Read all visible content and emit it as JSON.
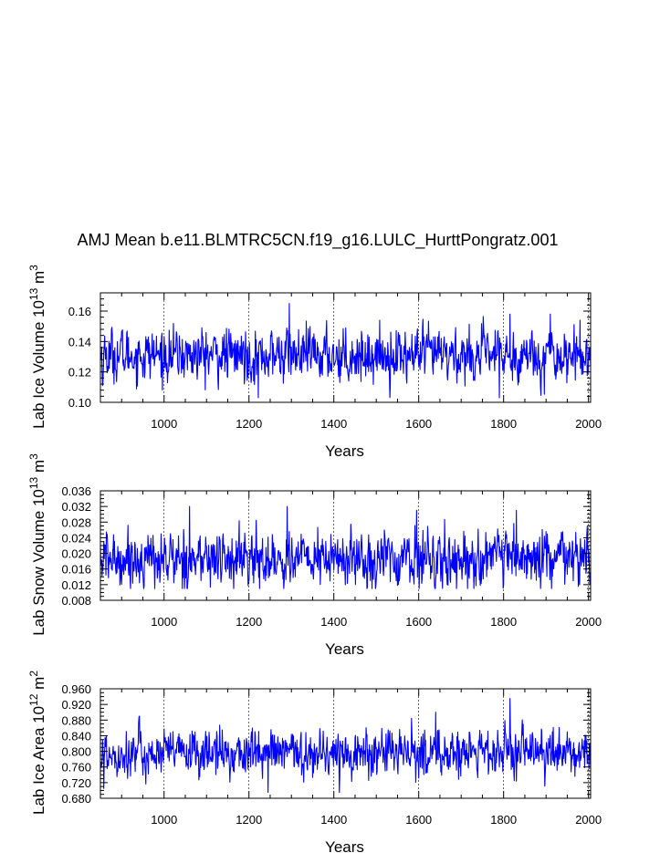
{
  "figure_title": "AMJ Mean b.e11.BLMTRC5CN.f19_g16.LULC_HurttPongratz.001",
  "colors": {
    "series": "#0000ff",
    "axis": "#000000",
    "grid": "#000000",
    "background": "#ffffff"
  },
  "chart_data": [
    {
      "type": "line",
      "title": "AMJ Mean b.e11.BLMTRC5CN.f19_g16.LULC_HurttPongratz.001",
      "ylabel": "Lab Ice Volume 10^13 m^3",
      "ylabel_parts": {
        "main": "Lab Ice Volume 10",
        "exp": "13",
        "unit": " m",
        "unit_exp": "3"
      },
      "xlabel": "Years",
      "xlim": [
        850,
        2005
      ],
      "ylim": [
        0.1,
        0.172
      ],
      "xticks": [
        1000,
        1200,
        1400,
        1600,
        1800,
        2000
      ],
      "xticklabels": [
        "1000",
        "1200",
        "1400",
        "1600",
        "1800",
        "2000"
      ],
      "yticks": [
        0.1,
        0.12,
        0.14,
        0.16
      ],
      "yticklabels": [
        "0.10",
        "0.12",
        "0.14",
        "0.16"
      ],
      "yminor_step": 0.004,
      "grid": "vertical-dashed-at-xticks",
      "series": [
        {
          "name": "Lab Ice Volume",
          "base_mean": 0.131,
          "noise_sd": 0.0085,
          "range": [
            0.103,
            0.165
          ],
          "extremes": [
            {
              "year": 1295,
              "value": 0.165
            },
            {
              "year": 1222,
              "value": 0.103
            },
            {
              "year": 1790,
              "value": 0.103
            },
            {
              "year": 1815,
              "value": 0.158
            },
            {
              "year": 1910,
              "value": 0.158
            },
            {
              "year": 855,
              "value": 0.111
            }
          ]
        }
      ]
    },
    {
      "type": "line",
      "ylabel": "Lab Snow Volume 10^13 m^3",
      "ylabel_parts": {
        "main": "Lab Snow Volume 10",
        "exp": "13",
        "unit": " m",
        "unit_exp": "3"
      },
      "xlabel": "Years",
      "xlim": [
        850,
        2005
      ],
      "ylim": [
        0.008,
        0.036
      ],
      "xticks": [
        1000,
        1200,
        1400,
        1600,
        1800,
        2000
      ],
      "xticklabels": [
        "1000",
        "1200",
        "1400",
        "1600",
        "1800",
        "2000"
      ],
      "yticks": [
        0.008,
        0.012,
        0.016,
        0.02,
        0.024,
        0.028,
        0.032,
        0.036
      ],
      "yticklabels": [
        "0.008",
        "0.012",
        "0.016",
        "0.020",
        "0.024",
        "0.028",
        "0.032",
        "0.036"
      ],
      "yminor_step": 0.001,
      "grid": "vertical-dashed-at-xticks",
      "series": [
        {
          "name": "Lab Snow Volume",
          "base_mean": 0.0185,
          "noise_sd": 0.0035,
          "range": [
            0.011,
            0.032
          ],
          "extremes": [
            {
              "year": 1060,
              "value": 0.032
            },
            {
              "year": 1290,
              "value": 0.032
            },
            {
              "year": 1595,
              "value": 0.031
            },
            {
              "year": 1830,
              "value": 0.031
            },
            {
              "year": 1225,
              "value": 0.011
            },
            {
              "year": 1715,
              "value": 0.011
            }
          ]
        }
      ]
    },
    {
      "type": "line",
      "ylabel": "Lab Ice Area 10^12 m^2",
      "ylabel_parts": {
        "main": "Lab Ice Area 10",
        "exp": "12",
        "unit": " m",
        "unit_exp": "2"
      },
      "xlabel": "Years",
      "xlim": [
        850,
        2005
      ],
      "ylim": [
        0.68,
        0.96
      ],
      "xticks": [
        1000,
        1200,
        1400,
        1600,
        1800,
        2000
      ],
      "xticklabels": [
        "1000",
        "1200",
        "1400",
        "1600",
        "1800",
        "2000"
      ],
      "yticks": [
        0.68,
        0.72,
        0.76,
        0.8,
        0.84,
        0.88,
        0.92,
        0.96
      ],
      "yticklabels": [
        "0.680",
        "0.720",
        "0.760",
        "0.800",
        "0.840",
        "0.880",
        "0.920",
        "0.960"
      ],
      "yminor_step": 0.01,
      "grid": "vertical-dashed-at-xticks",
      "series": [
        {
          "name": "Lab Ice Area",
          "base_mean": 0.795,
          "noise_sd": 0.03,
          "range": [
            0.695,
            0.935
          ],
          "extremes": [
            {
              "year": 1815,
              "value": 0.935
            },
            {
              "year": 1640,
              "value": 0.9
            },
            {
              "year": 1245,
              "value": 0.695
            },
            {
              "year": 858,
              "value": 0.705
            },
            {
              "year": 940,
              "value": 0.873
            }
          ]
        }
      ]
    }
  ]
}
